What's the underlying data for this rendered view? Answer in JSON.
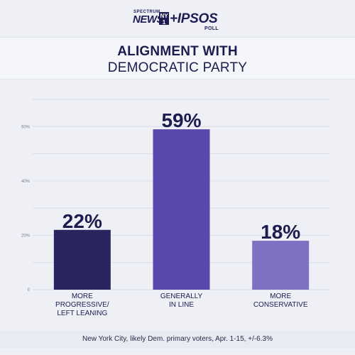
{
  "logo": {
    "spectrum": "SPECTRUM",
    "news": "NEWS",
    "ny": "NY1",
    "ipsos": "+IPSOS",
    "poll": "POLL"
  },
  "title": {
    "line1": "ALIGNMENT WITH",
    "line2": "DEMOCRATIC PARTY"
  },
  "footer": "New York City, likely Dem. primary voters, Apr. 1-15, +/-6.3%",
  "chart_data": {
    "type": "bar",
    "title": "ALIGNMENT WITH DEMOCRATIC PARTY",
    "categories": [
      [
        "MORE",
        "PROGRESSIVE/",
        "LEFT LEANING"
      ],
      [
        "GENERALLY",
        "IN LINE"
      ],
      [
        "MORE",
        "CONSERVATIVE"
      ]
    ],
    "values": [
      22,
      59,
      18
    ],
    "value_labels": [
      "22%",
      "59%",
      "18%"
    ],
    "colors": [
      "#29255e",
      "#5a47ac",
      "#7d71c2"
    ],
    "ylim": [
      0,
      70
    ],
    "yticks": [
      0,
      20,
      40,
      60
    ],
    "ytick_labels": [
      "0",
      "20%",
      "40%",
      "60%"
    ],
    "grid": true
  }
}
